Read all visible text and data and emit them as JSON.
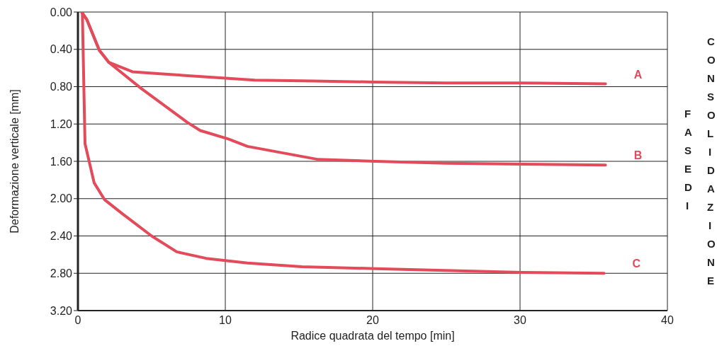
{
  "chart_data": {
    "type": "line",
    "xlabel": "Radice quadrata del tempo [min]",
    "ylabel": "Deformazione verticale [mm]",
    "xlim": [
      0,
      40
    ],
    "xticks": [
      0,
      10,
      20,
      30,
      40
    ],
    "ylim": [
      3.2,
      0
    ],
    "yticks": [
      {
        "value": 0,
        "label": "0.00"
      },
      {
        "value": 0.4,
        "label": "0.40"
      },
      {
        "value": 0.8,
        "label": "0.80"
      },
      {
        "value": 1.2,
        "label": "1.20"
      },
      {
        "value": 1.6,
        "label": "1.60"
      },
      {
        "value": 2,
        "label": "2.00"
      },
      {
        "value": 2.4,
        "label": "2.40"
      },
      {
        "value": 2.8,
        "label": "2.80"
      },
      {
        "value": 3.2,
        "label": "3.20"
      }
    ],
    "grid": true,
    "marker": "none",
    "line_style": "solid",
    "annotations": [
      "FASE DI",
      "CONSOLIDAZIONE"
    ],
    "series": [
      {
        "name": "A",
        "color": "#e34a5a",
        "x": [
          0.25,
          0.6,
          1.45,
          2.1,
          3.7,
          5.4,
          9.1,
          12,
          16,
          20,
          25,
          30,
          35.8
        ],
        "values": [
          0,
          0.08,
          0.41,
          0.54,
          0.64,
          0.66,
          0.7,
          0.73,
          0.74,
          0.75,
          0.76,
          0.76,
          0.77
        ]
      },
      {
        "name": "B",
        "color": "#e34a5a",
        "x": [
          0.25,
          0.6,
          1.45,
          2.1,
          4.3,
          7.4,
          8.3,
          10.2,
          11.5,
          16.3,
          20.2,
          25,
          30,
          35.8
        ],
        "values": [
          0,
          0.08,
          0.41,
          0.54,
          0.82,
          1.18,
          1.27,
          1.36,
          1.44,
          1.58,
          1.6,
          1.62,
          1.63,
          1.64
        ]
      },
      {
        "name": "C",
        "color": "#e34a5a",
        "x": [
          0.3,
          0.48,
          1.1,
          1.8,
          3,
          5,
          6.7,
          8.7,
          11.5,
          15.2,
          20.2,
          30.1,
          35.7
        ],
        "values": [
          0,
          1.41,
          1.83,
          2.01,
          2.16,
          2.4,
          2.57,
          2.64,
          2.69,
          2.73,
          2.75,
          2.79,
          2.8
        ]
      }
    ]
  }
}
